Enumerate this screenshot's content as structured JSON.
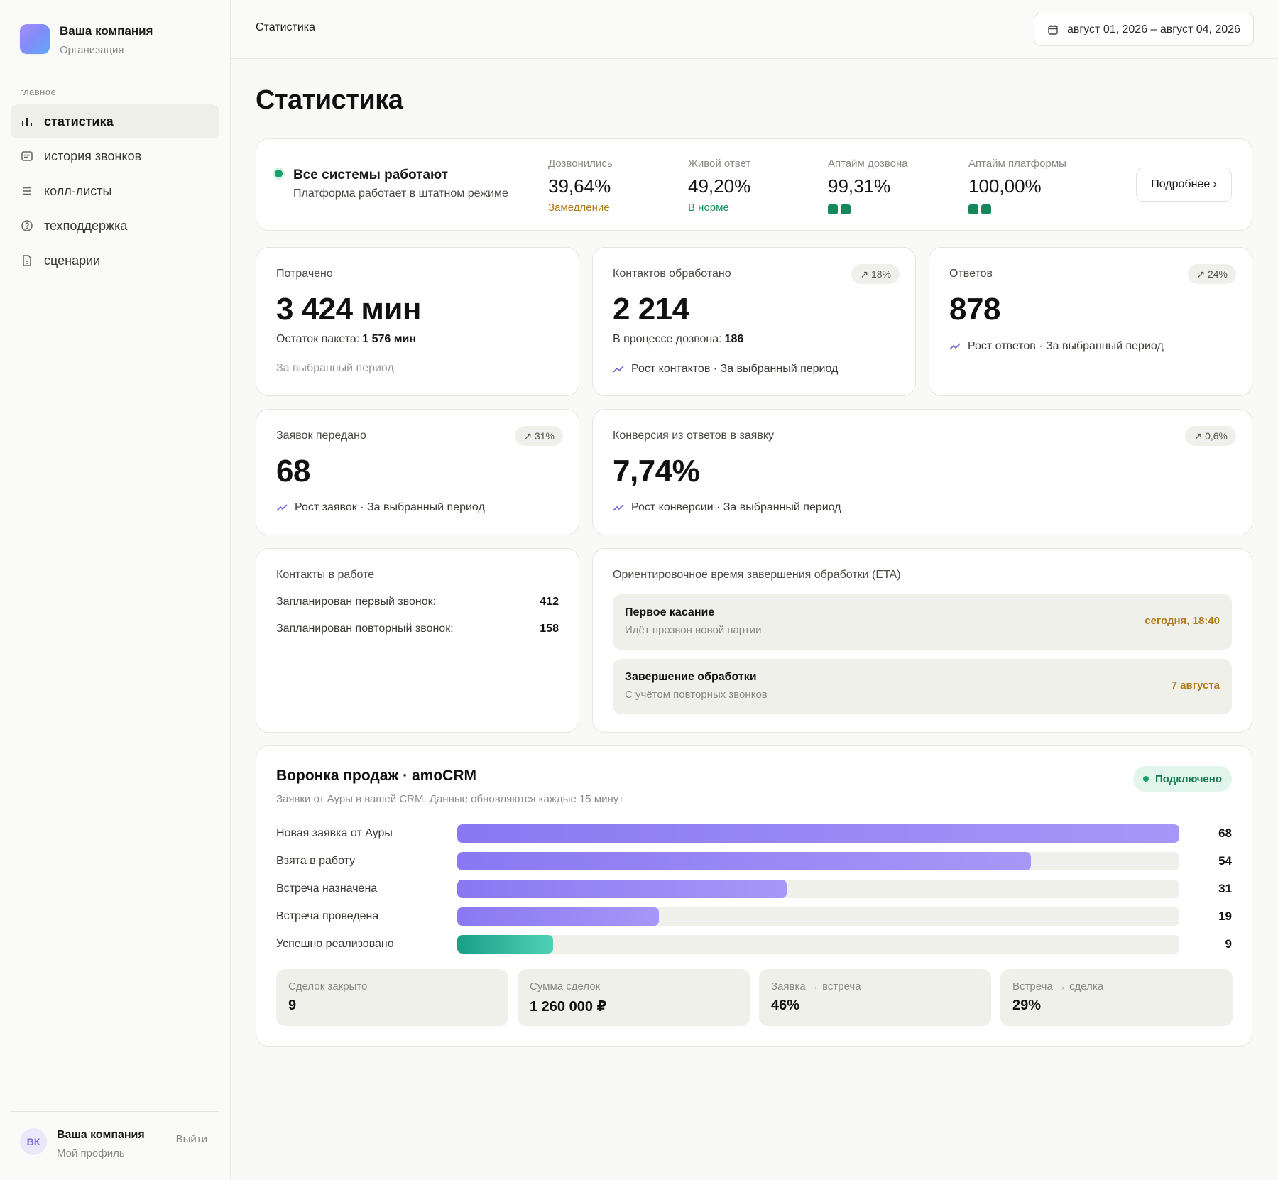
{
  "sidebar": {
    "brand_name": "Ваша компания",
    "brand_sub": "Организация",
    "section": "главное",
    "items": [
      {
        "label": "статистика",
        "icon": "bar-chart-icon"
      },
      {
        "label": "история звонков",
        "icon": "message-icon"
      },
      {
        "label": "колл-листы",
        "icon": "list-icon"
      },
      {
        "label": "техподдержка",
        "icon": "help-circle-icon"
      },
      {
        "label": "сценарии",
        "icon": "document-icon"
      }
    ],
    "footer": {
      "initials": "ВК",
      "name": "Ваша компания",
      "sub": "Мой профиль",
      "logout": "Выйти"
    }
  },
  "topbar": {
    "crumb": "Статистика",
    "date_range": "август 01, 2026 – август 04, 2026"
  },
  "page_title": "Статистика",
  "status": {
    "title": "Все системы работают",
    "sub": "Платформа работает в штатном режиме",
    "metrics": [
      {
        "label": "Дозвонились",
        "value": "39,64%",
        "note": "Замедление"
      },
      {
        "label": "Живой ответ",
        "value": "49,20%",
        "note": "В норме"
      },
      {
        "label": "Аптайм дозвона",
        "value": "99,31%"
      },
      {
        "label": "Аптайм платформы",
        "value": "100,00%"
      }
    ],
    "more": "Подробнее ›"
  },
  "spent": {
    "label": "Потрачено",
    "value": "3 424 мин",
    "rest_label": "Остаток пакета:",
    "rest_value": "1 576 мин",
    "period": "За выбранный период"
  },
  "contacts": {
    "label": "Контактов обработано",
    "badge": "↗ 18%",
    "value": "2 214",
    "progress_label": "В процессе дозвона:",
    "progress_value": "186",
    "trend": "Рост контактов · За выбранный период"
  },
  "answers": {
    "label": "Ответов",
    "badge": "↗ 24%",
    "value": "878",
    "trend": "Рост ответов · За выбранный период"
  },
  "leads": {
    "label": "Заявок передано",
    "badge": "↗ 31%",
    "value": "68",
    "trend": "Рост заявок · За выбранный период"
  },
  "conversion": {
    "label": "Конверсия из ответов в заявку",
    "badge": "↗ 0,6%",
    "value": "7,74%",
    "trend": "Рост конверсии · За выбранный период"
  },
  "in_work": {
    "label": "Контакты в работе",
    "rows": [
      {
        "label": "Запланирован первый звонок:",
        "value": "412"
      },
      {
        "label": "Запланирован повторный звонок:",
        "value": "158"
      }
    ]
  },
  "eta": {
    "label": "Ориентировочное время завершения обработки (ETA)",
    "items": [
      {
        "title": "Первое касание",
        "sub": "Идёт прозвон новой партии",
        "value": "сегодня, 18:40"
      },
      {
        "title": "Завершение обработки",
        "sub": "С учётом повторных звонков",
        "value": "7 августа"
      }
    ]
  },
  "funnel": {
    "title": "Воронка продаж · amoCRM",
    "sub": "Заявки от Ауры в вашей CRM. Данные обновляются каждые 15 минут",
    "status": "Подключено",
    "max": 68,
    "stages": [
      {
        "label": "Новая заявка от Ауры",
        "value": 68
      },
      {
        "label": "Взята в работу",
        "value": 54
      },
      {
        "label": "Встреча назначена",
        "value": 31
      },
      {
        "label": "Встреча проведена",
        "value": 19
      },
      {
        "label": "Успешно реализовано",
        "value": 9
      }
    ],
    "kpis": [
      {
        "label": "Сделок закрыто",
        "value": "9"
      },
      {
        "label": "Сумма сделок",
        "value": "1 260 000 ₽"
      },
      {
        "label": "Заявка → встреча",
        "value": "46%"
      },
      {
        "label": "Встреча → сделка",
        "value": "29%"
      }
    ]
  },
  "colors": {
    "accent": "#8a78f2",
    "success": "#1a9e6a",
    "warn": "#b07b14"
  }
}
